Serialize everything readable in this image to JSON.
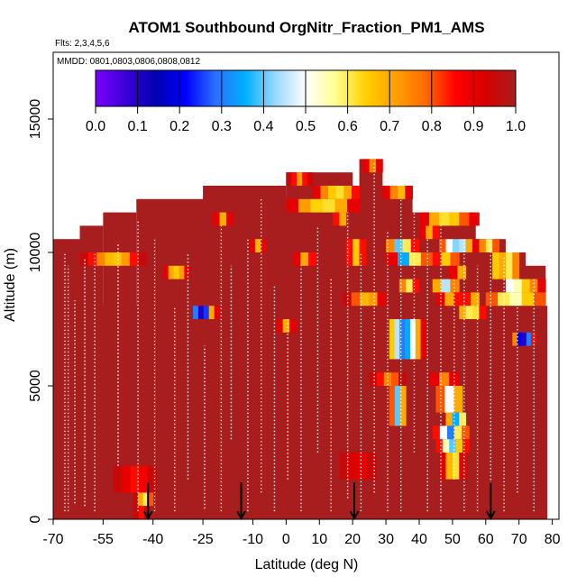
{
  "chart_data": {
    "type": "heatmap",
    "title": "ATOM1 Southbound OrgNitr_Fraction_PM1_AMS",
    "flights_label": "Flts: 2,3,4,5,6",
    "dates_label": "MMDD: 0801,0803,0806,0808,0812",
    "xlabel": "Latitude (deg N)",
    "ylabel": "Altitude (m)",
    "xlim": [
      -70,
      82
    ],
    "ylim": [
      0,
      17500
    ],
    "x_ticks": [
      -70,
      -55,
      -40,
      -25,
      -10,
      0,
      10,
      20,
      30,
      40,
      50,
      60,
      70,
      80
    ],
    "x_tick_labels": [
      "-70",
      "-55",
      "-40",
      "-25",
      "-10",
      "0",
      "10",
      "20",
      "30",
      "40",
      "50",
      "60",
      "70",
      "80"
    ],
    "y_ticks": [
      0,
      5000,
      10000,
      15000
    ],
    "y_tick_labels": [
      "0",
      "5000",
      "10000",
      "15000"
    ],
    "colorbar": {
      "min": 0.0,
      "max": 1.0,
      "ticks": [
        "0.0",
        "0.1",
        "0.2",
        "0.3",
        "0.4",
        "0.5",
        "0.6",
        "0.7",
        "0.8",
        "0.9",
        "1.0"
      ],
      "stops": [
        "#7a00ff",
        "#3a00d8",
        "#0000b0",
        "#0000ff",
        "#2a70ff",
        "#00b0ff",
        "#9ad8ff",
        "#ffffff",
        "#ffff90",
        "#ffd000",
        "#ffa000",
        "#ff6a00",
        "#ff0000",
        "#d60000",
        "#a81e1e"
      ]
    },
    "background_value": 1.0,
    "coverage_envelope": [
      {
        "lat_min": -70,
        "lat_max": 78.5,
        "alt_top": 8000
      },
      {
        "lat_min": -70,
        "lat_max": -59,
        "alt_top": 10500
      },
      {
        "lat_min": -62,
        "lat_max": -55,
        "alt_top": 11000
      },
      {
        "lat_min": -55,
        "lat_max": -45,
        "alt_top": 11500
      },
      {
        "lat_min": -45,
        "lat_max": 5,
        "alt_top": 12000
      },
      {
        "lat_min": -25,
        "lat_max": 0,
        "alt_top": 12500
      },
      {
        "lat_min": 0,
        "lat_max": 38,
        "alt_top": 12500
      },
      {
        "lat_min": 0,
        "lat_max": 20,
        "alt_top": 13000
      },
      {
        "lat_min": 22,
        "lat_max": 29,
        "alt_top": 13500
      },
      {
        "lat_min": 30,
        "lat_max": 57,
        "alt_top": 11500
      },
      {
        "lat_min": 50,
        "lat_max": 66,
        "alt_top": 10500
      },
      {
        "lat_min": 60,
        "lat_max": 72,
        "alt_top": 10000
      },
      {
        "lat_min": 70,
        "lat_max": 78,
        "alt_top": 9500
      }
    ],
    "anomaly_cells": [
      {
        "lat_min": -62,
        "lat_max": -42,
        "alt_min": 9500,
        "alt_max": 10000,
        "values": [
          0.95,
          0.85,
          0.75,
          0.68,
          0.66,
          0.72,
          0.85,
          0.95
        ]
      },
      {
        "lat_min": -37,
        "lat_max": -29,
        "alt_min": 9000,
        "alt_max": 9500,
        "values": [
          0.9,
          0.7,
          0.65,
          0.72,
          0.9
        ]
      },
      {
        "lat_min": -28,
        "lat_max": -20,
        "alt_min": 7500,
        "alt_max": 8000,
        "values": [
          0.3,
          0.1,
          0.25,
          0.7,
          0.9
        ]
      },
      {
        "lat_min": -22,
        "lat_max": -16,
        "alt_min": 11000,
        "alt_max": 11500,
        "values": [
          0.9,
          0.7,
          0.9
        ]
      },
      {
        "lat_min": -11,
        "lat_max": -6,
        "alt_min": 10000,
        "alt_max": 10500,
        "values": [
          0.9,
          0.68,
          0.9
        ]
      },
      {
        "lat_min": -3,
        "lat_max": 3,
        "alt_min": 7000,
        "alt_max": 7500,
        "values": [
          0.9,
          0.7,
          0.9
        ]
      },
      {
        "lat_min": 0,
        "lat_max": 8,
        "alt_min": 12500,
        "alt_max": 13000,
        "values": [
          0.95,
          0.85,
          0.72,
          0.85,
          0.95
        ]
      },
      {
        "lat_min": 8,
        "lat_max": 22,
        "alt_min": 12000,
        "alt_max": 12500,
        "values": [
          0.9,
          0.75,
          0.65,
          0.62,
          0.7,
          0.85
        ]
      },
      {
        "lat_min": 0,
        "lat_max": 22,
        "alt_min": 11500,
        "alt_max": 12000,
        "values": [
          0.9,
          0.72,
          0.64,
          0.62,
          0.7,
          0.9
        ]
      },
      {
        "lat_min": 14,
        "lat_max": 18,
        "alt_min": 11000,
        "alt_max": 11500,
        "values": [
          0.85,
          0.7
        ]
      },
      {
        "lat_min": 2,
        "lat_max": 9,
        "alt_min": 9500,
        "alt_max": 10000,
        "values": [
          0.9,
          0.7,
          0.85
        ]
      },
      {
        "lat_min": 18,
        "lat_max": 24,
        "alt_min": 9500,
        "alt_max": 10500,
        "values": [
          0.85,
          0.65,
          0.85
        ]
      },
      {
        "lat_min": 17,
        "lat_max": 30,
        "alt_min": 8000,
        "alt_max": 8500,
        "values": [
          0.95,
          0.8,
          0.68,
          0.72,
          0.9
        ]
      },
      {
        "lat_min": 23,
        "lat_max": 29,
        "alt_min": 13000,
        "alt_max": 13500,
        "values": [
          0.9,
          0.75,
          0.9
        ]
      },
      {
        "lat_min": 29,
        "lat_max": 38,
        "alt_min": 12000,
        "alt_max": 12500,
        "values": [
          0.9,
          0.75,
          0.68,
          0.9
        ]
      },
      {
        "lat_min": 30,
        "lat_max": 40,
        "alt_min": 10000,
        "alt_max": 10500,
        "values": [
          0.75,
          0.4,
          0.6,
          0.85
        ]
      },
      {
        "lat_min": 30,
        "lat_max": 44,
        "alt_min": 9500,
        "alt_max": 10000,
        "values": [
          0.9,
          0.35,
          0.6,
          0.8
        ]
      },
      {
        "lat_min": 34,
        "lat_max": 40,
        "alt_min": 8500,
        "alt_max": 9000,
        "values": [
          0.75,
          0.6,
          0.85
        ]
      },
      {
        "lat_min": 40,
        "lat_max": 46,
        "alt_min": 10500,
        "alt_max": 11000,
        "values": [
          0.9,
          0.7,
          0.85
        ]
      },
      {
        "lat_min": 40,
        "lat_max": 58,
        "alt_min": 11000,
        "alt_max": 11500,
        "values": [
          0.9,
          0.7,
          0.62,
          0.65,
          0.8,
          0.9
        ]
      },
      {
        "lat_min": 46,
        "lat_max": 58,
        "alt_min": 10000,
        "alt_max": 10500,
        "values": [
          0.8,
          0.5,
          0.42,
          0.45,
          0.7,
          0.9
        ]
      },
      {
        "lat_min": 44,
        "lat_max": 52,
        "alt_min": 9500,
        "alt_max": 10000,
        "values": [
          0.85,
          0.65,
          0.8
        ]
      },
      {
        "lat_min": 49,
        "lat_max": 54,
        "alt_min": 9000,
        "alt_max": 9500,
        "values": [
          0.9,
          0.7
        ]
      },
      {
        "lat_min": 44,
        "lat_max": 52,
        "alt_min": 8500,
        "alt_max": 9000,
        "values": [
          0.7,
          0.45,
          0.75
        ]
      },
      {
        "lat_min": 45,
        "lat_max": 53,
        "alt_min": 8000,
        "alt_max": 8500,
        "values": [
          0.9,
          0.7,
          0.85
        ]
      },
      {
        "lat_min": 53,
        "lat_max": 58,
        "alt_min": 8000,
        "alt_max": 8500,
        "values": [
          0.85,
          0.7
        ]
      },
      {
        "lat_min": 52,
        "lat_max": 60,
        "alt_min": 7500,
        "alt_max": 8000,
        "values": [
          0.7,
          0.6,
          0.62,
          0.85
        ]
      },
      {
        "lat_min": 58,
        "lat_max": 64,
        "alt_min": 10000,
        "alt_max": 10500,
        "values": [
          0.75,
          0.6,
          0.8
        ]
      },
      {
        "lat_min": 62,
        "lat_max": 70,
        "alt_min": 9000,
        "alt_max": 10000,
        "values": [
          0.65,
          0.7,
          0.6,
          0.75
        ]
      },
      {
        "lat_min": 66,
        "lat_max": 78,
        "alt_min": 8500,
        "alt_max": 9000,
        "values": [
          0.5,
          0.55,
          0.65,
          0.75,
          0.9
        ]
      },
      {
        "lat_min": 60,
        "lat_max": 78,
        "alt_min": 8000,
        "alt_max": 8500,
        "values": [
          0.8,
          0.6,
          0.55,
          0.65,
          0.8
        ]
      },
      {
        "lat_min": 68,
        "lat_max": 75,
        "alt_min": 6500,
        "alt_max": 7000,
        "values": [
          0.75,
          0.2,
          0.1,
          0.3,
          0.85
        ]
      },
      {
        "lat_min": 31,
        "lat_max": 42,
        "alt_min": 6000,
        "alt_max": 7500,
        "values": [
          0.65,
          0.45,
          0.3,
          0.35,
          0.5,
          0.7,
          0.9
        ]
      },
      {
        "lat_min": 25,
        "lat_max": 36,
        "alt_min": 5000,
        "alt_max": 5500,
        "values": [
          0.95,
          0.85,
          0.75,
          0.8,
          0.95
        ]
      },
      {
        "lat_min": 31,
        "lat_max": 36,
        "alt_min": 3500,
        "alt_max": 5000,
        "values": [
          0.8,
          0.4,
          0.7
        ]
      },
      {
        "lat_min": 43,
        "lat_max": 52,
        "alt_min": 5000,
        "alt_max": 5500,
        "values": [
          0.9,
          0.75,
          0.9
        ]
      },
      {
        "lat_min": 45,
        "lat_max": 53,
        "alt_min": 4000,
        "alt_max": 5000,
        "values": [
          0.8,
          0.5,
          0.7
        ]
      },
      {
        "lat_min": 48,
        "lat_max": 54,
        "alt_min": 3500,
        "alt_max": 4000,
        "values": [
          0.7,
          0.35,
          0.6
        ]
      },
      {
        "lat_min": 44,
        "lat_max": 55,
        "alt_min": 3000,
        "alt_max": 3500,
        "values": [
          0.85,
          0.5,
          0.3,
          0.6,
          0.8
        ]
      },
      {
        "lat_min": 45,
        "lat_max": 55,
        "alt_min": 2500,
        "alt_max": 3000,
        "values": [
          0.85,
          0.55,
          0.4,
          0.65,
          0.85
        ]
      },
      {
        "lat_min": 46,
        "lat_max": 54,
        "alt_min": 1500,
        "alt_max": 2500,
        "values": [
          0.9,
          0.68,
          0.62,
          0.9
        ]
      },
      {
        "lat_min": 16,
        "lat_max": 27,
        "alt_min": 1500,
        "alt_max": 2500,
        "values": [
          0.95,
          0.92,
          0.9,
          0.95
        ]
      },
      {
        "lat_min": -52,
        "lat_max": -39,
        "alt_min": 1000,
        "alt_max": 2000,
        "values": [
          0.95,
          0.9,
          0.85,
          0.88,
          0.95
        ]
      },
      {
        "lat_min": -46,
        "lat_max": -40,
        "alt_min": 500,
        "alt_max": 1000,
        "values": [
          0.95,
          0.7,
          0.6,
          0.8
        ]
      },
      {
        "lat_min": -46,
        "lat_max": -41,
        "alt_min": 0,
        "alt_max": 500,
        "values": [
          0.95,
          0.85,
          0.95
        ]
      }
    ],
    "arrows": [
      {
        "lat": -41.5,
        "alt_top": 700
      },
      {
        "lat": -13.5,
        "alt_top": 700
      },
      {
        "lat": 20.5,
        "alt_top": 700
      },
      {
        "lat": 61.5,
        "alt_top": 700
      }
    ],
    "flight_tracks": [
      {
        "lat": -66.5,
        "alt_min": 300,
        "alt_max": 10000
      },
      {
        "lat": -65.5,
        "alt_min": 300,
        "alt_max": 9500
      },
      {
        "lat": -63.5,
        "alt_min": 600,
        "alt_max": 8200
      },
      {
        "lat": -60.5,
        "alt_min": 500,
        "alt_max": 9800
      },
      {
        "lat": -57.5,
        "alt_min": 300,
        "alt_max": 10000
      },
      {
        "lat": -50.5,
        "alt_min": 2000,
        "alt_max": 10300
      },
      {
        "lat": -44.5,
        "alt_min": 300,
        "alt_max": 11200
      },
      {
        "lat": -39.5,
        "alt_min": 300,
        "alt_max": 10500
      },
      {
        "lat": -33.5,
        "alt_min": 300,
        "alt_max": 8000
      },
      {
        "lat": -29.5,
        "alt_min": 1500,
        "alt_max": 10000
      },
      {
        "lat": -24.5,
        "alt_min": 400,
        "alt_max": 6500
      },
      {
        "lat": -19.5,
        "alt_min": 300,
        "alt_max": 11000
      },
      {
        "lat": -16.5,
        "alt_min": 3000,
        "alt_max": 9500
      },
      {
        "lat": -11.5,
        "alt_min": 300,
        "alt_max": 10500
      },
      {
        "lat": -7.5,
        "alt_min": 1000,
        "alt_max": 12000
      },
      {
        "lat": -3.5,
        "alt_min": 300,
        "alt_max": 8800
      },
      {
        "lat": 0.5,
        "alt_min": 1500,
        "alt_max": 7500
      },
      {
        "lat": 4.5,
        "alt_min": 300,
        "alt_max": 9500
      },
      {
        "lat": 9.5,
        "alt_min": 2500,
        "alt_max": 11000
      },
      {
        "lat": 13.5,
        "alt_min": 300,
        "alt_max": 9000
      },
      {
        "lat": 18.5,
        "alt_min": 800,
        "alt_max": 11500
      },
      {
        "lat": 22.5,
        "alt_min": 300,
        "alt_max": 10000
      },
      {
        "lat": 26.5,
        "alt_min": 1000,
        "alt_max": 13400
      },
      {
        "lat": 30.5,
        "alt_min": 300,
        "alt_max": 10800
      },
      {
        "lat": 34.5,
        "alt_min": 300,
        "alt_max": 12000
      },
      {
        "lat": 38.5,
        "alt_min": 2500,
        "alt_max": 11500
      },
      {
        "lat": 42.5,
        "alt_min": 300,
        "alt_max": 10500
      },
      {
        "lat": 46.5,
        "alt_min": 300,
        "alt_max": 11000
      },
      {
        "lat": 50.5,
        "alt_min": 1500,
        "alt_max": 9000
      },
      {
        "lat": 53.5,
        "alt_min": 300,
        "alt_max": 10500
      },
      {
        "lat": 57.5,
        "alt_min": 300,
        "alt_max": 9500
      },
      {
        "lat": 61.5,
        "alt_min": 800,
        "alt_max": 10500
      },
      {
        "lat": 65.5,
        "alt_min": 300,
        "alt_max": 9800
      },
      {
        "lat": 69.5,
        "alt_min": 1000,
        "alt_max": 8500
      },
      {
        "lat": 74.5,
        "alt_min": 300,
        "alt_max": 9000
      }
    ]
  }
}
